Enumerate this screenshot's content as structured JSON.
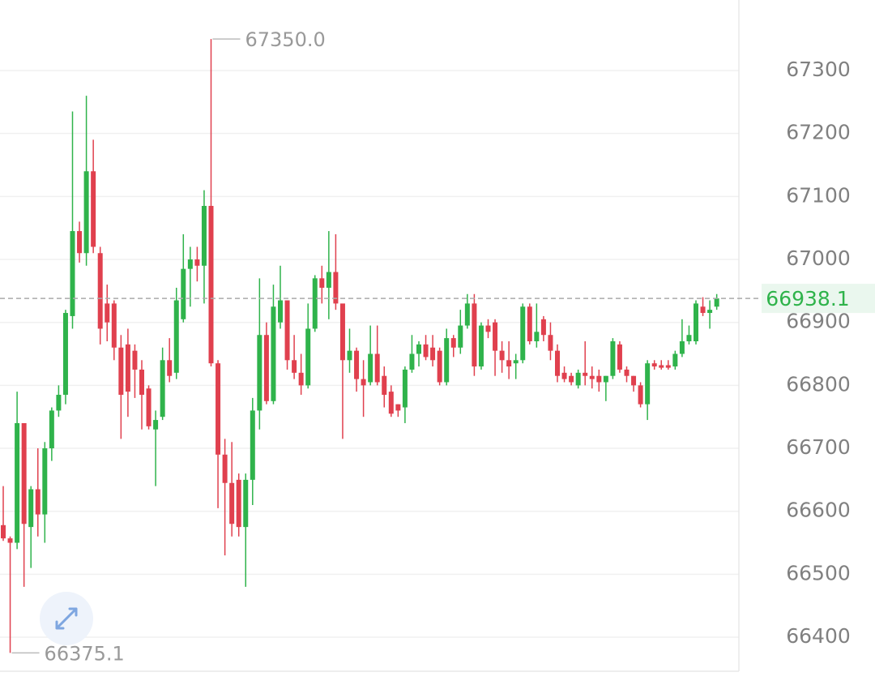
{
  "chart_data": {
    "type": "candlestick",
    "up_color": "#2fb34b",
    "down_color": "#e0404e",
    "ylim": [
      66346,
      67412
    ],
    "yticks": [
      66400,
      66500,
      66600,
      66700,
      66800,
      66900,
      67000,
      67100,
      67200,
      67300
    ],
    "grid": true,
    "max_label": "67350.0",
    "min_label": "66375.1",
    "last_price_label": "66938.1",
    "series": {
      "open": [
        66578,
        66557,
        66550,
        66740,
        66575,
        66635,
        66595,
        66700,
        66760,
        66785,
        66910,
        67045,
        67010,
        67140,
        67010,
        66930,
        66930,
        66860,
        66865,
        66855,
        66825,
        66795,
        66730,
        66750,
        66840,
        66820,
        66905,
        66985,
        67000,
        66990,
        67085,
        66835,
        66690,
        66645,
        66650,
        66575,
        66650,
        66760,
        66880,
        66775,
        66900,
        66935,
        66840,
        66820,
        66800,
        66890,
        66970,
        66955,
        66980,
        66930,
        66840,
        66855,
        66810,
        66805,
        66850,
        66815,
        66790,
        66770,
        66765,
        66825,
        66850,
        66865,
        66860,
        66855,
        66805,
        66875,
        66860,
        66895,
        66930,
        66830,
        66895,
        66900,
        66855,
        66840,
        66835,
        66840,
        66925,
        66870,
        66905,
        66880,
        66855,
        66820,
        66815,
        66800,
        66820,
        66815,
        66815,
        66805,
        66815,
        66865,
        66825,
        66815,
        66800,
        66770,
        66835,
        66832,
        66832,
        66830,
        66850,
        66870,
        66870,
        66925,
        66915,
        66925
      ],
      "high": [
        66640,
        66560,
        66790,
        66740,
        66640,
        66700,
        66710,
        66765,
        66800,
        66920,
        67235,
        67060,
        67260,
        67190,
        67020,
        66960,
        66935,
        66880,
        66890,
        66865,
        66840,
        66800,
        66760,
        66860,
        66875,
        66955,
        67040,
        67020,
        67020,
        67110,
        67350,
        66840,
        66715,
        66710,
        66660,
        66660,
        66780,
        66970,
        66900,
        66960,
        66990,
        66935,
        66880,
        66850,
        66930,
        66975,
        66990,
        67045,
        67040,
        66925,
        66890,
        66860,
        66840,
        66895,
        66895,
        66830,
        66800,
        66770,
        66830,
        66880,
        66870,
        66880,
        66880,
        66860,
        66890,
        66880,
        66920,
        66945,
        66945,
        66900,
        66905,
        66905,
        66870,
        66870,
        66850,
        66930,
        66930,
        66930,
        66910,
        66900,
        66865,
        66830,
        66820,
        66825,
        66870,
        66830,
        66825,
        66815,
        66875,
        66870,
        66830,
        66815,
        66805,
        66840,
        66840,
        66840,
        66840,
        66855,
        66905,
        66895,
        66935,
        66940,
        66935,
        66945
      ],
      "low": [
        66553,
        66375.1,
        66540,
        66480,
        66510,
        66560,
        66550,
        66680,
        66750,
        66770,
        66890,
        66995,
        66990,
        67010,
        66865,
        66870,
        66840,
        66715,
        66750,
        66780,
        66730,
        66730,
        66640,
        66745,
        66805,
        66810,
        66900,
        66925,
        66965,
        66930,
        66830,
        66605,
        66530,
        66560,
        66560,
        66480,
        66610,
        66730,
        66770,
        66770,
        66890,
        66825,
        66810,
        66785,
        66795,
        66885,
        66930,
        66905,
        66920,
        66715,
        66820,
        66790,
        66750,
        66800,
        66800,
        66765,
        66750,
        66750,
        66740,
        66820,
        66830,
        66840,
        66830,
        66800,
        66800,
        66845,
        66850,
        66890,
        66815,
        66825,
        66875,
        66815,
        66820,
        66810,
        66810,
        66835,
        66865,
        66860,
        66870,
        66840,
        66805,
        66805,
        66800,
        66795,
        66800,
        66795,
        66790,
        66775,
        66810,
        66820,
        66805,
        66790,
        66765,
        66745,
        66825,
        66825,
        66825,
        66825,
        66845,
        66865,
        66865,
        66910,
        66890,
        66920
      ],
      "close": [
        66557,
        66550,
        66740,
        66580,
        66635,
        66595,
        66700,
        66760,
        66785,
        66915,
        67045,
        67010,
        67140,
        67020,
        66890,
        66900,
        66860,
        66785,
        66790,
        66825,
        66785,
        66735,
        66745,
        66840,
        66815,
        66935,
        66985,
        67000,
        66990,
        67085,
        66835,
        66690,
        66645,
        66580,
        66575,
        66650,
        66760,
        66880,
        66775,
        66925,
        66935,
        66840,
        66820,
        66800,
        66890,
        66970,
        66955,
        66980,
        66930,
        66840,
        66855,
        66810,
        66800,
        66850,
        66805,
        66785,
        66755,
        66760,
        66825,
        66850,
        66865,
        66845,
        66840,
        66805,
        66875,
        66860,
        66895,
        66930,
        66830,
        66895,
        66885,
        66855,
        66840,
        66830,
        66840,
        66925,
        66870,
        66885,
        66880,
        66855,
        66815,
        66810,
        66805,
        66820,
        66815,
        66810,
        66805,
        66815,
        66870,
        66825,
        66815,
        66800,
        66770,
        66835,
        66830,
        66828,
        66828,
        66850,
        66870,
        66880,
        66930,
        66915,
        66920,
        66938.1
      ]
    }
  }
}
